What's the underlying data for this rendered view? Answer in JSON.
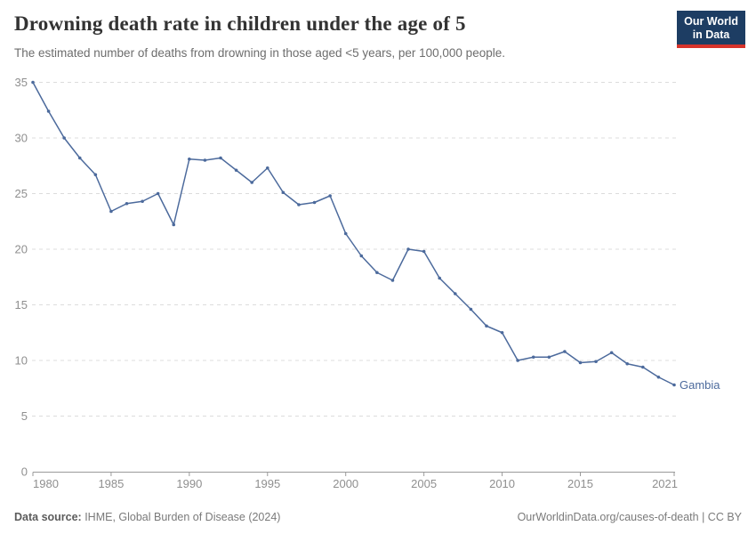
{
  "header": {
    "title": "Drowning death rate in children under the age of 5",
    "subtitle": "The estimated number of deaths from drowning in those aged <5 years, per 100,000 people.",
    "logo": {
      "line1": "Our World",
      "line2": "in Data",
      "bg_color": "#1d3d63",
      "accent_color": "#d7332b"
    }
  },
  "chart_data": {
    "type": "line",
    "title": "Drowning death rate in children under the age of 5",
    "subtitle": "The estimated number of deaths from drowning in those aged <5 years, per 100,000 people.",
    "xlabel": "",
    "ylabel": "",
    "xlim": [
      1980,
      2021
    ],
    "ylim": [
      0,
      35
    ],
    "xticks": [
      1980,
      1985,
      1990,
      1995,
      2000,
      2005,
      2010,
      2015,
      2021
    ],
    "yticks": [
      0,
      5,
      10,
      15,
      20,
      25,
      30,
      35
    ],
    "grid": "horizontal-dashed",
    "legend": "end-of-line-label",
    "axis_color": "#9a9a9a",
    "gridline_color": "#dcdcdc",
    "tick_label_color": "#8f8f8f",
    "series": [
      {
        "name": "Gambia",
        "color": "#4c6a9c",
        "x": [
          1980,
          1981,
          1982,
          1983,
          1984,
          1985,
          1986,
          1987,
          1988,
          1989,
          1990,
          1991,
          1992,
          1993,
          1994,
          1995,
          1996,
          1997,
          1998,
          1999,
          2000,
          2001,
          2002,
          2003,
          2004,
          2005,
          2006,
          2007,
          2008,
          2009,
          2010,
          2011,
          2012,
          2013,
          2014,
          2015,
          2016,
          2017,
          2018,
          2019,
          2020,
          2021
        ],
        "values": [
          35.0,
          32.4,
          30.0,
          28.2,
          26.7,
          23.4,
          24.1,
          24.3,
          25.0,
          22.2,
          28.1,
          28.0,
          28.2,
          27.1,
          26.0,
          27.3,
          25.1,
          24.0,
          24.2,
          24.8,
          21.4,
          19.4,
          17.9,
          17.2,
          20.0,
          19.8,
          17.4,
          16.0,
          14.6,
          13.1,
          12.5,
          10.0,
          10.3,
          10.3,
          10.8,
          9.8,
          9.9,
          10.7,
          9.7,
          9.4,
          8.5,
          7.8
        ]
      }
    ]
  },
  "footer": {
    "source_label": "Data source:",
    "source_text": " IHME, Global Burden of Disease (2024)",
    "link_text": "OurWorldinData.org/causes-of-death | CC BY"
  }
}
